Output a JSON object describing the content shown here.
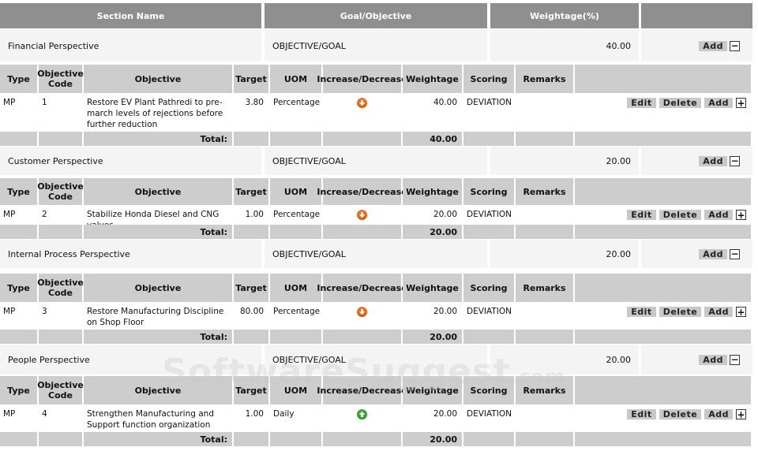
{
  "header": {
    "section_name": "Section Name",
    "goal_objective": "Goal/Objective",
    "weightage": "Weightage(%)"
  },
  "columns": {
    "type": "Type",
    "objective_code": "Objective Code",
    "objective": "Objective",
    "target": "Target",
    "uom": "UOM",
    "increase_decrease": "Increase/Decrease",
    "weightage": "Weightage",
    "scoring": "Scoring",
    "remarks": "Remarks"
  },
  "labels": {
    "add": "Add",
    "edit": "Edit",
    "delete": "Delete",
    "total": "Total:",
    "minus": "−",
    "plus": "+"
  },
  "sections": [
    {
      "name": "Financial Perspective",
      "goal": "OBJECTIVE/GOAL",
      "weightage": "40.00",
      "row": {
        "type": "MP",
        "code": "1",
        "objective": "Restore EV Plant Pathredi to pre-march levels of rejections before further reduction",
        "target": "3.80",
        "uom": "Percentage",
        "direction_icon": "arrow-down-orange",
        "weightage": "40.00",
        "scoring": "DEVIATION",
        "remarks": ""
      },
      "total": "40.00"
    },
    {
      "name": "Customer Perspective",
      "goal": "OBJECTIVE/GOAL",
      "weightage": "20.00",
      "row": {
        "type": "MP",
        "code": "2",
        "objective": "Stabilize Honda Diesel and CNG valves",
        "target": "1.00",
        "uom": "Percentage",
        "direction_icon": "arrow-down-orange",
        "weightage": "20.00",
        "scoring": "DEVIATION",
        "remarks": ""
      },
      "total": "20.00"
    },
    {
      "name": "Internal Process Perspective",
      "goal": "OBJECTIVE/GOAL",
      "weightage": "20.00",
      "row": {
        "type": "MP",
        "code": "3",
        "objective": "Restore Manufacturing Discipline on Shop Floor",
        "target": "80.00",
        "uom": "Percentage",
        "direction_icon": "arrow-down-orange",
        "weightage": "20.00",
        "scoring": "DEVIATION",
        "remarks": ""
      },
      "total": "20.00"
    },
    {
      "name": "People Perspective",
      "goal": "OBJECTIVE/GOAL",
      "weightage": "20.00",
      "row": {
        "type": "MP",
        "code": "4",
        "objective": "Strengthen Manufacturing and Support function organization",
        "target": "1.00",
        "uom": "Daily",
        "direction_icon": "arrow-up-green",
        "weightage": "20.00",
        "scoring": "DEVIATION",
        "remarks": ""
      },
      "total": "20.00"
    }
  ],
  "watermark": {
    "main": "SoftwareSuggest",
    "suffix": ".com"
  },
  "colors": {
    "header_bg": "#8f8f8f",
    "column_bg": "#cdcdcd",
    "section_bg": "#f4f4f4",
    "decrease": "#f07020",
    "increase": "#3faa3a"
  }
}
